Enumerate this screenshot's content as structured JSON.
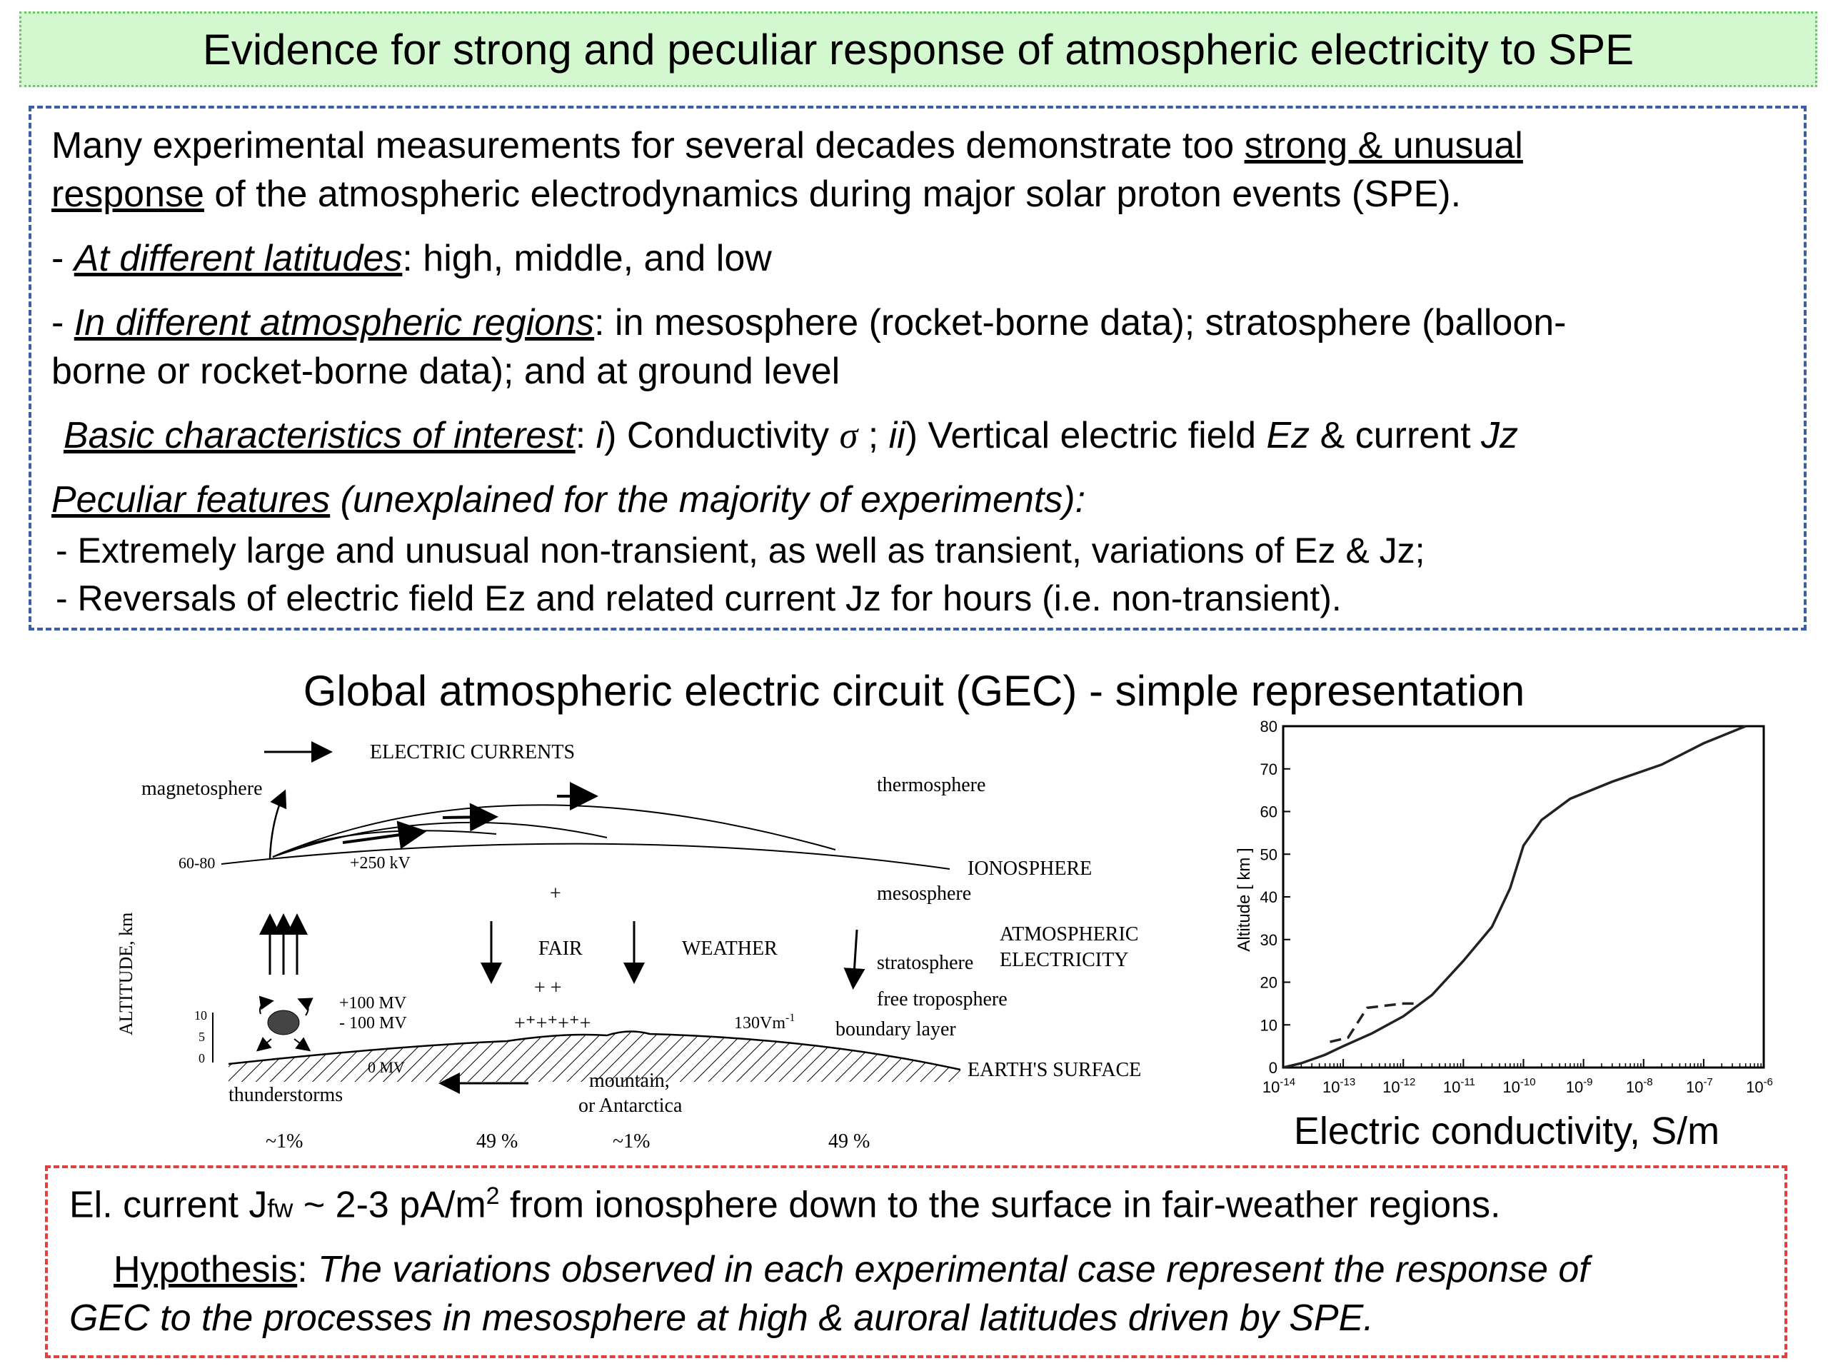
{
  "title": "Evidence for strong and peculiar response of atmospheric electricity to SPE",
  "intro": {
    "l1_a": "Many experimental measurements for several decades demonstrate too ",
    "l1_u": "strong & unusual",
    "l2_u": "response",
    "l2_b": " of the atmospheric electrodynamics during major solar proton events (SPE).",
    "lat_dash": " - ",
    "lat_u": "At different latitudes",
    "lat_rest": ":  high, middle, and low",
    "reg_u": "In different atmospheric regions",
    "reg_rest": ": in mesosphere (rocket-borne data); stratosphere (balloon-",
    "reg_l2": "borne or rocket-borne data); and at ground level",
    "basic_u": "Basic characteristics of interest",
    "basic_c1": ": ",
    "basic_i": "i",
    "basic_c2": ") Conductivity ",
    "basic_sigma": "σ",
    "basic_c3": " ; ",
    "basic_ii": "ii",
    "basic_c4": ") Vertical electric field ",
    "basic_ez": "Ez",
    "basic_c5": " & current ",
    "basic_jz": "Jz",
    "pec_u": "Peculiar features",
    "pec_rest": " (unexplained for the majority of experiments):",
    "pec_1": " - Extremely large and unusual non-transient, as well as transient, variations of Ez & Jz;",
    "pec_2": " - Reversals of electric field Ez and related current Jz for hours (i.e. non-transient)."
  },
  "gec_heading": "Global atmospheric electric circuit (GEC) - simple representation",
  "diagram": {
    "electric_currents": "ELECTRIC  CURRENTS",
    "magnetosphere": "magnetosphere",
    "thermosphere": "thermosphere",
    "alt_60_80": "60-80",
    "plus_250": "+250 kV",
    "ionosphere": "IONOSPHERE",
    "mesosphere": "mesosphere",
    "plus_sign": "+",
    "plus_plus": "+   +",
    "plus_row": "+⁺+⁺+⁺+",
    "altitude_km": "ALTITUDE, km",
    "fair": "FAIR",
    "weather": "WEATHER",
    "atmospheric": "ATMOSPHERIC",
    "electricity": "ELECTRICITY",
    "stratosphere": "stratosphere",
    "free_troposphere": "free troposphere",
    "plus_100": "+100 MV",
    "minus_100": "- 100 MV",
    "field_130": "130Vm",
    "field_sup": "-1",
    "boundary_layer": "boundary layer",
    "zero_mv": "0 MV",
    "earths_surface": "EARTH'S SURFACE",
    "tick_10": "10",
    "tick_5": "5",
    "tick_0": "0",
    "thunderstorms": "thunderstorms",
    "mountain": "mountain,",
    "antarctica": "or Antarctica",
    "pct_1a": "~1%",
    "pct_49a": "49 %",
    "pct_1b": "~1%",
    "pct_49b": "49 %"
  },
  "chart_data": {
    "type": "line",
    "title": "",
    "xlabel": "Electric conductivity, S/m",
    "ylabel": "Altitude [ km ]",
    "xscale": "log",
    "xlim": [
      1e-14,
      1e-06
    ],
    "ylim": [
      0,
      80
    ],
    "x_tick_labels": [
      "10-14",
      "10-13",
      "10-12",
      "10-11",
      "10-10",
      "10-9",
      "10-8",
      "10-7",
      "10-6"
    ],
    "y_ticks": [
      0,
      10,
      20,
      30,
      40,
      50,
      60,
      70,
      80
    ],
    "series": [
      {
        "style": "solid",
        "points": [
          [
            1e-14,
            0
          ],
          [
            2e-14,
            1
          ],
          [
            5e-14,
            3
          ],
          [
            1e-13,
            5
          ],
          [
            3e-13,
            8
          ],
          [
            1e-12,
            12
          ],
          [
            3e-12,
            17
          ],
          [
            1e-11,
            25
          ],
          [
            3e-11,
            33
          ],
          [
            6e-11,
            42
          ],
          [
            1e-10,
            52
          ],
          [
            2e-10,
            58
          ],
          [
            6e-10,
            63
          ],
          [
            3e-09,
            67
          ],
          [
            2e-08,
            71
          ],
          [
            1e-07,
            76
          ],
          [
            5e-07,
            80
          ]
        ]
      },
      {
        "style": "dashed",
        "points": [
          [
            6e-14,
            6
          ],
          [
            1.2e-13,
            7
          ],
          [
            2.5e-13,
            14
          ],
          [
            1e-12,
            15
          ],
          [
            1.8e-12,
            15
          ]
        ]
      }
    ],
    "x_sup": [
      "-14",
      "-13",
      "-12",
      "-11",
      "-10",
      "-9",
      "-8",
      "-7",
      "-6"
    ]
  },
  "hypothesis": {
    "l1_a": "El. current J",
    "l1_sub": "fw",
    "l1_b": " ~ 2-3 pA/m",
    "l1_sup": "2",
    "l1_c": " from ionosphere down to the surface in fair-weather regions.",
    "hyp_label": "Hypothesis",
    "hyp_colon": ": ",
    "hyp_text1": "The variations observed in each experimental case represent the response of",
    "hyp_text2": "GEC to the processes in mesosphere at high & auroral latitudes driven by SPE."
  }
}
